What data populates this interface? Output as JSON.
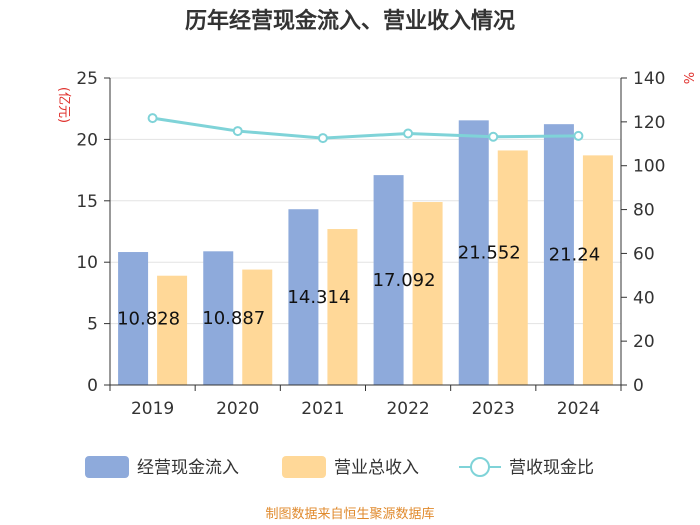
{
  "chart_data": {
    "type": "bar",
    "title": "历年经营现金流入、营业收入情况",
    "categories": [
      "2019",
      "2020",
      "2021",
      "2022",
      "2023",
      "2024"
    ],
    "y_left": {
      "unit": "(亿元)",
      "range": [
        0,
        25
      ],
      "ticks": [
        "0",
        "5",
        "10",
        "15",
        "20",
        "25"
      ]
    },
    "y_right": {
      "unit": "%",
      "range": [
        0,
        140
      ],
      "ticks": [
        "0",
        "20",
        "40",
        "60",
        "80",
        "100",
        "120",
        "140"
      ]
    },
    "series": [
      {
        "name": "经营现金流入",
        "type": "bar",
        "axis": "left",
        "color": "#8eaadb",
        "values": [
          10.828,
          10.887,
          14.314,
          17.092,
          21.552,
          21.24
        ],
        "labels": [
          "10.828",
          "10.887",
          "14.314",
          "17.092",
          "21.552",
          "21.24"
        ]
      },
      {
        "name": "营业总收入",
        "type": "bar",
        "axis": "left",
        "color": "#ffd898",
        "values": [
          8.9,
          9.4,
          12.7,
          14.9,
          19.1,
          18.7
        ]
      },
      {
        "name": "营收现金比",
        "type": "line",
        "axis": "right",
        "color": "#7fd3d8",
        "values": [
          121.7,
          115.8,
          112.6,
          114.7,
          113.2,
          113.6
        ]
      }
    ],
    "legend_position": "bottom",
    "grid": "horizontal"
  },
  "source": "制图数据来自恒生聚源数据库"
}
